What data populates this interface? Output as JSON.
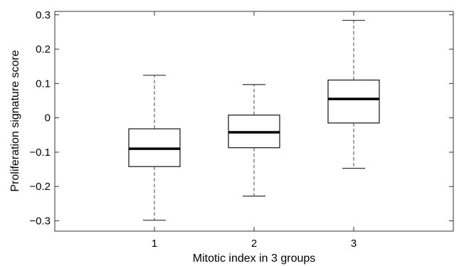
{
  "chart_data": {
    "type": "box",
    "title": "",
    "xlabel": "Mitotic index in 3 groups",
    "ylabel": "Proliferation signature score",
    "categories": [
      "1",
      "2",
      "3"
    ],
    "ylim": [
      -0.33,
      0.31
    ],
    "yticks": [
      -0.3,
      -0.2,
      -0.1,
      0,
      0.1,
      0.2,
      0.3
    ],
    "ytick_labels": [
      "−0.3",
      "−0.2",
      "−0.1",
      "0",
      "0.1",
      "0.2",
      "0.3"
    ],
    "boxes": [
      {
        "category": "1",
        "whisker_low": -0.298,
        "q1": -0.142,
        "median": -0.09,
        "q3": -0.032,
        "whisker_high": 0.124
      },
      {
        "category": "2",
        "whisker_low": -0.228,
        "q1": -0.087,
        "median": -0.042,
        "q3": 0.008,
        "whisker_high": 0.097
      },
      {
        "category": "3",
        "whisker_low": -0.147,
        "q1": -0.015,
        "median": 0.055,
        "q3": 0.11,
        "whisker_high": 0.284
      }
    ],
    "grid": false,
    "legend": false
  }
}
